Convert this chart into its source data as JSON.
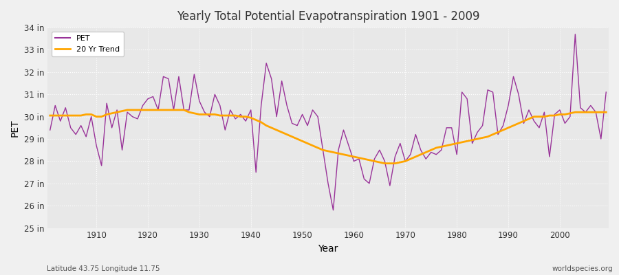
{
  "title": "Yearly Total Potential Evapotranspiration 1901 - 2009",
  "xlabel": "Year",
  "ylabel": "PET",
  "subtitle_left": "Latitude 43.75 Longitude 11.75",
  "subtitle_right": "worldspecies.org",
  "pet_color": "#993399",
  "trend_color": "#FFA500",
  "bg_color": "#f0f0f0",
  "plot_bg_color": "#e8e8e8",
  "ylim": [
    25,
    34
  ],
  "yticks": [
    25,
    26,
    27,
    28,
    29,
    30,
    31,
    32,
    33,
    34
  ],
  "ytick_labels": [
    "25 in",
    "26 in",
    "27 in",
    "28 in",
    "29 in",
    "30 in",
    "31 in",
    "32 in",
    "33 in",
    "34 in"
  ],
  "years": [
    1901,
    1902,
    1903,
    1904,
    1905,
    1906,
    1907,
    1908,
    1909,
    1910,
    1911,
    1912,
    1913,
    1914,
    1915,
    1916,
    1917,
    1918,
    1919,
    1920,
    1921,
    1922,
    1923,
    1924,
    1925,
    1926,
    1927,
    1928,
    1929,
    1930,
    1931,
    1932,
    1933,
    1934,
    1935,
    1936,
    1937,
    1938,
    1939,
    1940,
    1941,
    1942,
    1943,
    1944,
    1945,
    1946,
    1947,
    1948,
    1949,
    1950,
    1951,
    1952,
    1953,
    1954,
    1955,
    1956,
    1957,
    1958,
    1959,
    1960,
    1961,
    1962,
    1963,
    1964,
    1965,
    1966,
    1967,
    1968,
    1969,
    1970,
    1971,
    1972,
    1973,
    1974,
    1975,
    1976,
    1977,
    1978,
    1979,
    1980,
    1981,
    1982,
    1983,
    1984,
    1985,
    1986,
    1987,
    1988,
    1989,
    1990,
    1991,
    1992,
    1993,
    1994,
    1995,
    1996,
    1997,
    1998,
    1999,
    2000,
    2001,
    2002,
    2003,
    2004,
    2005,
    2006,
    2007,
    2008,
    2009
  ],
  "pet": [
    29.4,
    30.5,
    29.8,
    30.4,
    29.5,
    29.2,
    29.6,
    29.1,
    30.0,
    28.7,
    27.8,
    30.6,
    29.5,
    30.3,
    28.5,
    30.2,
    30.0,
    29.9,
    30.5,
    30.8,
    30.9,
    30.3,
    31.8,
    31.7,
    30.3,
    31.8,
    30.3,
    30.3,
    31.9,
    30.7,
    30.2,
    30.0,
    31.0,
    30.5,
    29.4,
    30.3,
    29.9,
    30.1,
    29.8,
    30.3,
    27.5,
    30.5,
    32.4,
    31.7,
    30.0,
    31.6,
    30.5,
    29.7,
    29.6,
    30.1,
    29.6,
    30.3,
    30.0,
    28.5,
    27.0,
    25.8,
    28.5,
    29.4,
    28.7,
    28.0,
    28.1,
    27.2,
    27.0,
    28.1,
    28.5,
    28.0,
    26.9,
    28.2,
    28.8,
    28.0,
    28.3,
    29.2,
    28.5,
    28.1,
    28.4,
    28.3,
    28.5,
    29.5,
    29.5,
    28.3,
    31.1,
    30.8,
    28.8,
    29.3,
    29.6,
    31.2,
    31.1,
    29.2,
    29.6,
    30.5,
    31.8,
    31.0,
    29.7,
    30.3,
    29.8,
    29.5,
    30.2,
    28.2,
    30.1,
    30.3,
    29.7,
    30.0,
    33.7,
    30.4,
    30.2,
    30.5,
    30.2,
    29.0,
    31.1
  ],
  "trend": [
    30.05,
    30.05,
    30.05,
    30.05,
    30.05,
    30.05,
    30.05,
    30.1,
    30.1,
    30.0,
    30.0,
    30.1,
    30.15,
    30.2,
    30.25,
    30.3,
    30.3,
    30.3,
    30.3,
    30.3,
    30.3,
    30.3,
    30.3,
    30.3,
    30.3,
    30.3,
    30.3,
    30.2,
    30.15,
    30.1,
    30.1,
    30.1,
    30.1,
    30.05,
    30.05,
    30.05,
    30.05,
    30.0,
    30.0,
    29.95,
    29.85,
    29.75,
    29.6,
    29.5,
    29.4,
    29.3,
    29.2,
    29.1,
    29.0,
    28.9,
    28.8,
    28.7,
    28.6,
    28.5,
    28.45,
    28.4,
    28.35,
    28.3,
    28.25,
    28.2,
    28.15,
    28.1,
    28.05,
    28.0,
    27.95,
    27.9,
    27.9,
    27.9,
    27.95,
    28.0,
    28.1,
    28.2,
    28.3,
    28.4,
    28.5,
    28.6,
    28.65,
    28.7,
    28.75,
    28.8,
    28.85,
    28.9,
    28.95,
    29.0,
    29.05,
    29.1,
    29.2,
    29.3,
    29.4,
    29.5,
    29.6,
    29.7,
    29.8,
    29.9,
    30.0,
    30.0,
    30.0,
    30.05,
    30.05,
    30.1,
    30.1,
    30.15,
    30.2,
    30.2,
    30.2,
    30.2,
    30.2,
    30.2,
    30.2
  ]
}
